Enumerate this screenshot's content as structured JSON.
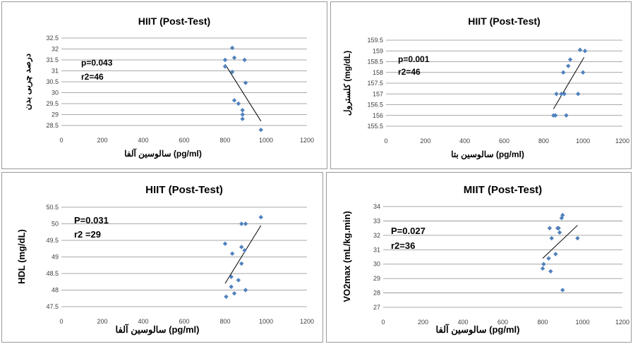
{
  "chart_data": [
    {
      "type": "scatter",
      "title": "HIIT (Post-Test)",
      "xlabel": "سالوسین آلفا (pg/ml)",
      "ylabel": "درصد چربی بدن",
      "xlim": [
        0,
        1200
      ],
      "ylim": [
        28.5,
        32.5
      ],
      "xticks": [
        "0",
        "200",
        "400",
        "600",
        "800",
        "1000",
        "1200"
      ],
      "yticks": [
        "28.5",
        "29",
        "29.5",
        "30",
        "30.5",
        "31",
        "31.5",
        "32",
        "32.5"
      ],
      "p_text": "p=0.043",
      "r2_text": "r2=46",
      "marker_color": "#4f81bd",
      "grid": true,
      "trendline": {
        "x": [
          800,
          975
        ],
        "y": [
          31.3,
          28.7
        ]
      },
      "points": [
        {
          "x": 835,
          "y": 32.05
        },
        {
          "x": 845,
          "y": 31.6
        },
        {
          "x": 800,
          "y": 31.5
        },
        {
          "x": 895,
          "y": 31.5
        },
        {
          "x": 800,
          "y": 31.2
        },
        {
          "x": 835,
          "y": 30.95
        },
        {
          "x": 900,
          "y": 30.45
        },
        {
          "x": 845,
          "y": 29.65
        },
        {
          "x": 865,
          "y": 29.5
        },
        {
          "x": 885,
          "y": 29.2
        },
        {
          "x": 885,
          "y": 29.0
        },
        {
          "x": 885,
          "y": 28.8
        },
        {
          "x": 975,
          "y": 28.3
        }
      ]
    },
    {
      "type": "scatter",
      "title": "HIIT (Post-Test)",
      "xlabel": "سالوسین بتا (pg/ml)",
      "ylabel": "کلسترول (mg/dL)",
      "xlim": [
        0,
        1200
      ],
      "ylim": [
        155.5,
        159.5
      ],
      "xticks": [
        "0",
        "200",
        "400",
        "600",
        "800",
        "1000",
        "1200"
      ],
      "yticks": [
        "155.5",
        "156",
        "156.5",
        "157",
        "157.5",
        "158",
        "158.5",
        "159",
        "159.5"
      ],
      "p_text": "p=0.001",
      "r2_text": "r2=46",
      "marker_color": "#4f81bd",
      "grid": true,
      "trendline": {
        "x": [
          850,
          1005
        ],
        "y": [
          156.3,
          158.7
        ]
      },
      "points": [
        {
          "x": 985,
          "y": 159.05
        },
        {
          "x": 1010,
          "y": 159.0
        },
        {
          "x": 935,
          "y": 158.6
        },
        {
          "x": 925,
          "y": 158.3
        },
        {
          "x": 900,
          "y": 158.0
        },
        {
          "x": 1000,
          "y": 158.0
        },
        {
          "x": 865,
          "y": 157.0
        },
        {
          "x": 890,
          "y": 157.0
        },
        {
          "x": 905,
          "y": 157.0
        },
        {
          "x": 975,
          "y": 157.0
        },
        {
          "x": 850,
          "y": 156.0
        },
        {
          "x": 860,
          "y": 156.0
        },
        {
          "x": 915,
          "y": 156.0
        }
      ]
    },
    {
      "type": "scatter",
      "title": "HIIT (Post-Test)",
      "xlabel": "سالوسین آلفا (pg/ml)",
      "ylabel": "HDL (mg/dL)",
      "xlim": [
        0,
        1200
      ],
      "ylim": [
        47.5,
        50.5
      ],
      "xticks": [
        "0",
        "200",
        "400",
        "600",
        "800",
        "1000",
        "1200"
      ],
      "yticks": [
        "47.5",
        "48",
        "48.5",
        "49",
        "49.5",
        "50",
        "50.5"
      ],
      "p_text": "P=0.031",
      "r2_text": "r2 =29",
      "marker_color": "#4f81bd",
      "grid": true,
      "trendline": {
        "x": [
          800,
          975
        ],
        "y": [
          48.2,
          49.95
        ]
      },
      "points": [
        {
          "x": 975,
          "y": 50.2
        },
        {
          "x": 880,
          "y": 50.0
        },
        {
          "x": 900,
          "y": 50.0
        },
        {
          "x": 800,
          "y": 49.4
        },
        {
          "x": 880,
          "y": 49.3
        },
        {
          "x": 895,
          "y": 49.2
        },
        {
          "x": 835,
          "y": 49.1
        },
        {
          "x": 880,
          "y": 48.8
        },
        {
          "x": 830,
          "y": 48.4
        },
        {
          "x": 865,
          "y": 48.3
        },
        {
          "x": 830,
          "y": 48.1
        },
        {
          "x": 900,
          "y": 48.0
        },
        {
          "x": 845,
          "y": 47.9
        },
        {
          "x": 805,
          "y": 47.8
        }
      ]
    },
    {
      "type": "scatter",
      "title": "MIIT (Post-Test)",
      "xlabel": "سالوسین آلفا (pg/ml)",
      "ylabel": "VO2max (mL/kg.min)",
      "xlim": [
        0,
        1200
      ],
      "ylim": [
        27,
        34
      ],
      "xticks": [
        "0",
        "200",
        "400",
        "600",
        "800",
        "1000",
        "1200"
      ],
      "yticks": [
        "27",
        "28",
        "29",
        "30",
        "31",
        "32",
        "33",
        "34"
      ],
      "p_text": "P=0.027",
      "r2_text": "r2=36",
      "marker_color": "#4f81bd",
      "grid": true,
      "trendline": {
        "x": [
          800,
          975
        ],
        "y": [
          30.4,
          32.7
        ]
      },
      "points": [
        {
          "x": 900,
          "y": 33.4
        },
        {
          "x": 895,
          "y": 33.2
        },
        {
          "x": 835,
          "y": 32.5
        },
        {
          "x": 875,
          "y": 32.5
        },
        {
          "x": 880,
          "y": 32.5
        },
        {
          "x": 885,
          "y": 32.2
        },
        {
          "x": 845,
          "y": 31.8
        },
        {
          "x": 975,
          "y": 31.8
        },
        {
          "x": 865,
          "y": 30.7
        },
        {
          "x": 830,
          "y": 30.4
        },
        {
          "x": 805,
          "y": 30.0
        },
        {
          "x": 800,
          "y": 29.7
        },
        {
          "x": 840,
          "y": 29.5
        },
        {
          "x": 900,
          "y": 28.2
        }
      ]
    }
  ]
}
